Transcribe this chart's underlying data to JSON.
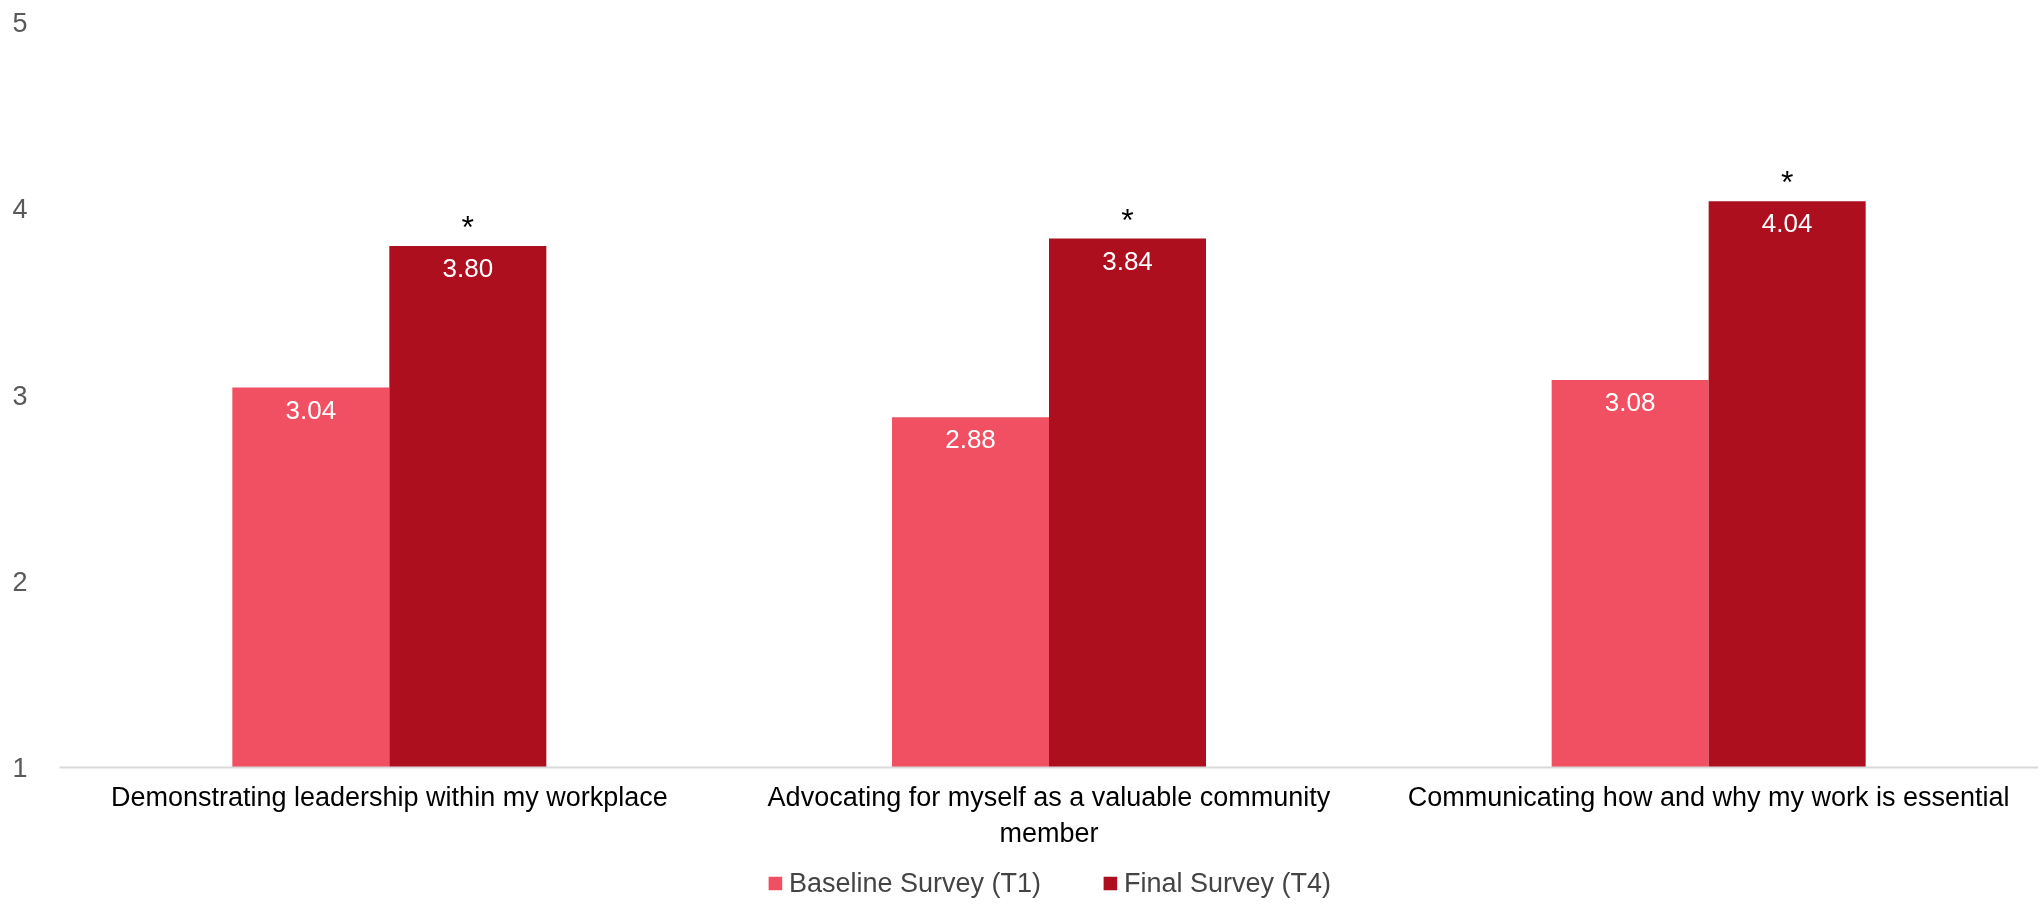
{
  "chart_data": {
    "type": "bar",
    "categories": [
      "Demonstrating leadership within my workplace",
      "Advocating for myself as a valuable community member",
      "Communicating how and why my work is essential"
    ],
    "series": [
      {
        "name": "Baseline Survey (T1)",
        "color": "#f05061",
        "values": [
          3.04,
          2.88,
          3.08
        ],
        "value_labels": [
          "3.04",
          "2.88",
          "3.08"
        ]
      },
      {
        "name": "Final Survey (T4)",
        "color": "#ad0f1f",
        "values": [
          3.8,
          3.84,
          4.04
        ],
        "value_labels": [
          "3.80",
          "3.84",
          "4.04"
        ]
      }
    ],
    "ylim": [
      1,
      5
    ],
    "yticks": [
      1,
      2,
      3,
      4,
      5
    ],
    "legend": "bottom",
    "annotations": [
      "*",
      "*",
      "*"
    ]
  }
}
